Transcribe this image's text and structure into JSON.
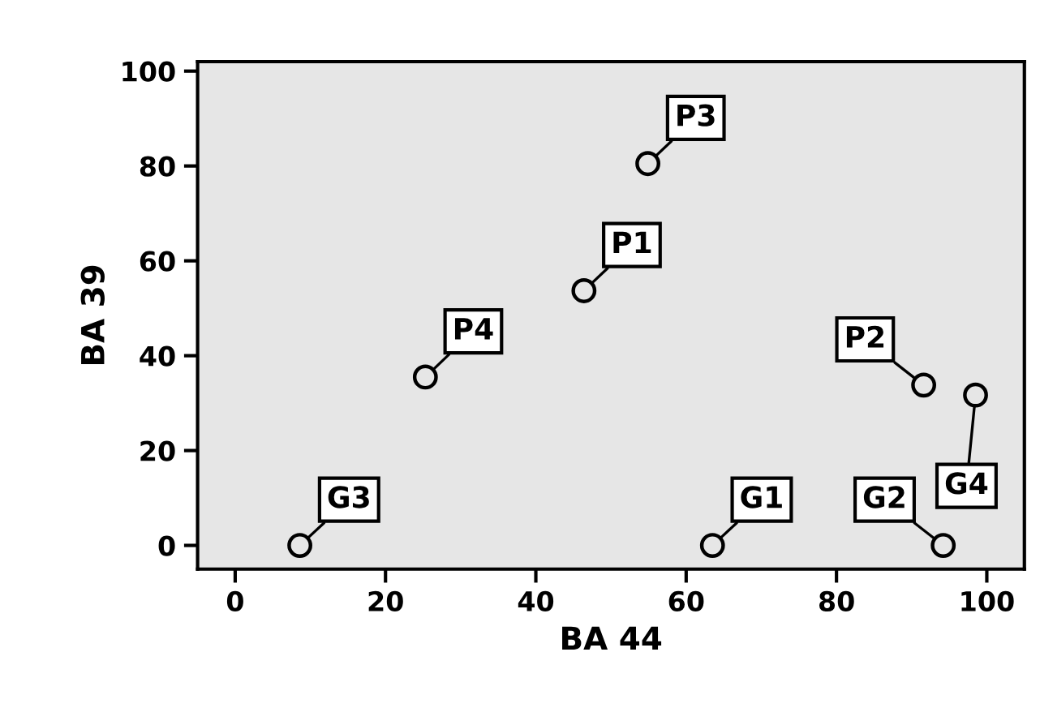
{
  "chart_data": {
    "type": "scatter",
    "xlabel": "BA 44",
    "ylabel": "BA 39",
    "x": [
      8.6,
      25.3,
      46.4,
      54.9,
      63.5,
      91.6,
      98.5,
      94.2
    ],
    "values": [
      0,
      35.5,
      53.7,
      80.5,
      0,
      33.8,
      31.7,
      0
    ],
    "color": "#000000",
    "marker": "circle",
    "grid": false,
    "xlim": [
      -5,
      105
    ],
    "ylim": [
      -5,
      102
    ],
    "xticks": [
      0,
      20,
      40,
      60,
      80,
      100
    ],
    "yticks": [
      0,
      20,
      40,
      60,
      80,
      100
    ],
    "annotations": [
      {
        "text": "G3",
        "x": 8.6,
        "y": 0
      },
      {
        "text": "P4",
        "x": 25.3,
        "y": 35.5
      },
      {
        "text": "P1",
        "x": 46.4,
        "y": 53.7
      },
      {
        "text": "P3",
        "x": 54.9,
        "y": 80.5
      },
      {
        "text": "G1",
        "x": 63.5,
        "y": 0
      },
      {
        "text": "P2",
        "x": 91.6,
        "y": 33.8
      },
      {
        "text": "G4",
        "x": 98.5,
        "y": 31.7
      },
      {
        "text": "G2",
        "x": 94.2,
        "y": 0
      }
    ]
  }
}
